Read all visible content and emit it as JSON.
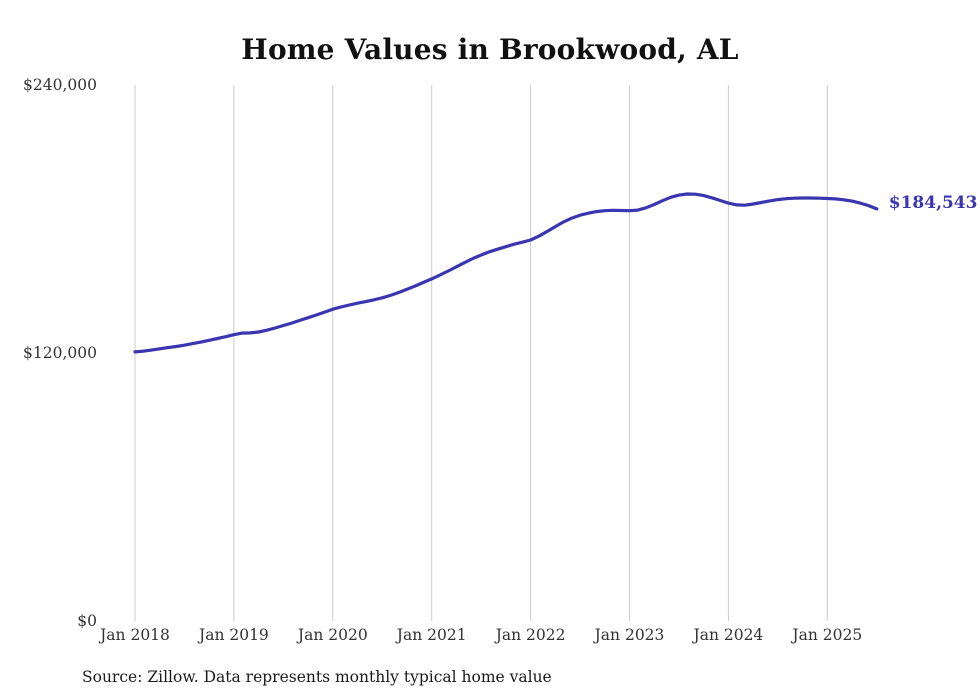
{
  "chart_data": {
    "type": "line",
    "title": "Home Values in Brookwood, AL",
    "series_name": "Monthly typical home value",
    "x_tick_labels": [
      "Jan 2018",
      "Jan 2019",
      "Jan 2020",
      "Jan 2021",
      "Jan 2022",
      "Jan 2023",
      "Jan 2024",
      "Jan 2025"
    ],
    "y_ticks": [
      {
        "value": 0,
        "label": "$0"
      },
      {
        "value": 120000,
        "label": "$120,000"
      },
      {
        "value": 240000,
        "label": "$240,000"
      }
    ],
    "ylim": [
      0,
      240000
    ],
    "grid": "vertical-only",
    "legend": "none",
    "line_color": "#3a35b0",
    "gridline_color": "#cccccc",
    "end_label": "$184,543",
    "latest_value": 184543,
    "months": [
      "2018-01",
      "2018-02",
      "2018-03",
      "2018-04",
      "2018-05",
      "2018-06",
      "2018-07",
      "2018-08",
      "2018-09",
      "2018-10",
      "2018-11",
      "2018-12",
      "2019-01",
      "2019-02",
      "2019-03",
      "2019-04",
      "2019-05",
      "2019-06",
      "2019-07",
      "2019-08",
      "2019-09",
      "2019-10",
      "2019-11",
      "2019-12",
      "2020-01",
      "2020-02",
      "2020-03",
      "2020-04",
      "2020-05",
      "2020-06",
      "2020-07",
      "2020-08",
      "2020-09",
      "2020-10",
      "2020-11",
      "2020-12",
      "2021-01",
      "2021-02",
      "2021-03",
      "2021-04",
      "2021-05",
      "2021-06",
      "2021-07",
      "2021-08",
      "2021-09",
      "2021-10",
      "2021-11",
      "2021-12",
      "2022-01",
      "2022-02",
      "2022-03",
      "2022-04",
      "2022-05",
      "2022-06",
      "2022-07",
      "2022-08",
      "2022-09",
      "2022-10",
      "2022-11",
      "2022-12",
      "2023-01",
      "2023-02",
      "2023-03",
      "2023-04",
      "2023-05",
      "2023-06",
      "2023-07",
      "2023-08",
      "2023-09",
      "2023-10",
      "2023-11",
      "2023-12",
      "2024-01",
      "2024-02",
      "2024-03",
      "2024-04",
      "2024-05",
      "2024-06",
      "2024-07",
      "2024-08",
      "2024-09",
      "2024-10",
      "2024-11",
      "2024-12",
      "2025-01",
      "2025-02",
      "2025-03",
      "2025-04",
      "2025-05",
      "2025-06",
      "2025-07"
    ],
    "values": [
      120500,
      120800,
      121300,
      121900,
      122400,
      122900,
      123500,
      124200,
      124900,
      125700,
      126500,
      127300,
      128200,
      128900,
      129000,
      129400,
      130200,
      131200,
      132300,
      133400,
      134600,
      135800,
      137000,
      138300,
      139600,
      140600,
      141500,
      142300,
      143000,
      143800,
      144700,
      145800,
      147100,
      148500,
      150000,
      151600,
      153200,
      154900,
      156700,
      158600,
      160500,
      162300,
      163900,
      165300,
      166500,
      167600,
      168700,
      169600,
      170600,
      172300,
      174400,
      176600,
      178700,
      180400,
      181700,
      182600,
      183300,
      183700,
      183900,
      183800,
      183700,
      184000,
      185000,
      186500,
      188200,
      189700,
      190700,
      191200,
      191100,
      190500,
      189500,
      188300,
      187100,
      186300,
      186200,
      186700,
      187400,
      188100,
      188700,
      189100,
      189300,
      189400,
      189400,
      189300,
      189200,
      189000,
      188600,
      188000,
      187100,
      186000,
      184543
    ]
  },
  "source": {
    "text": "Source: Zillow. Data represents monthly typical home value"
  }
}
